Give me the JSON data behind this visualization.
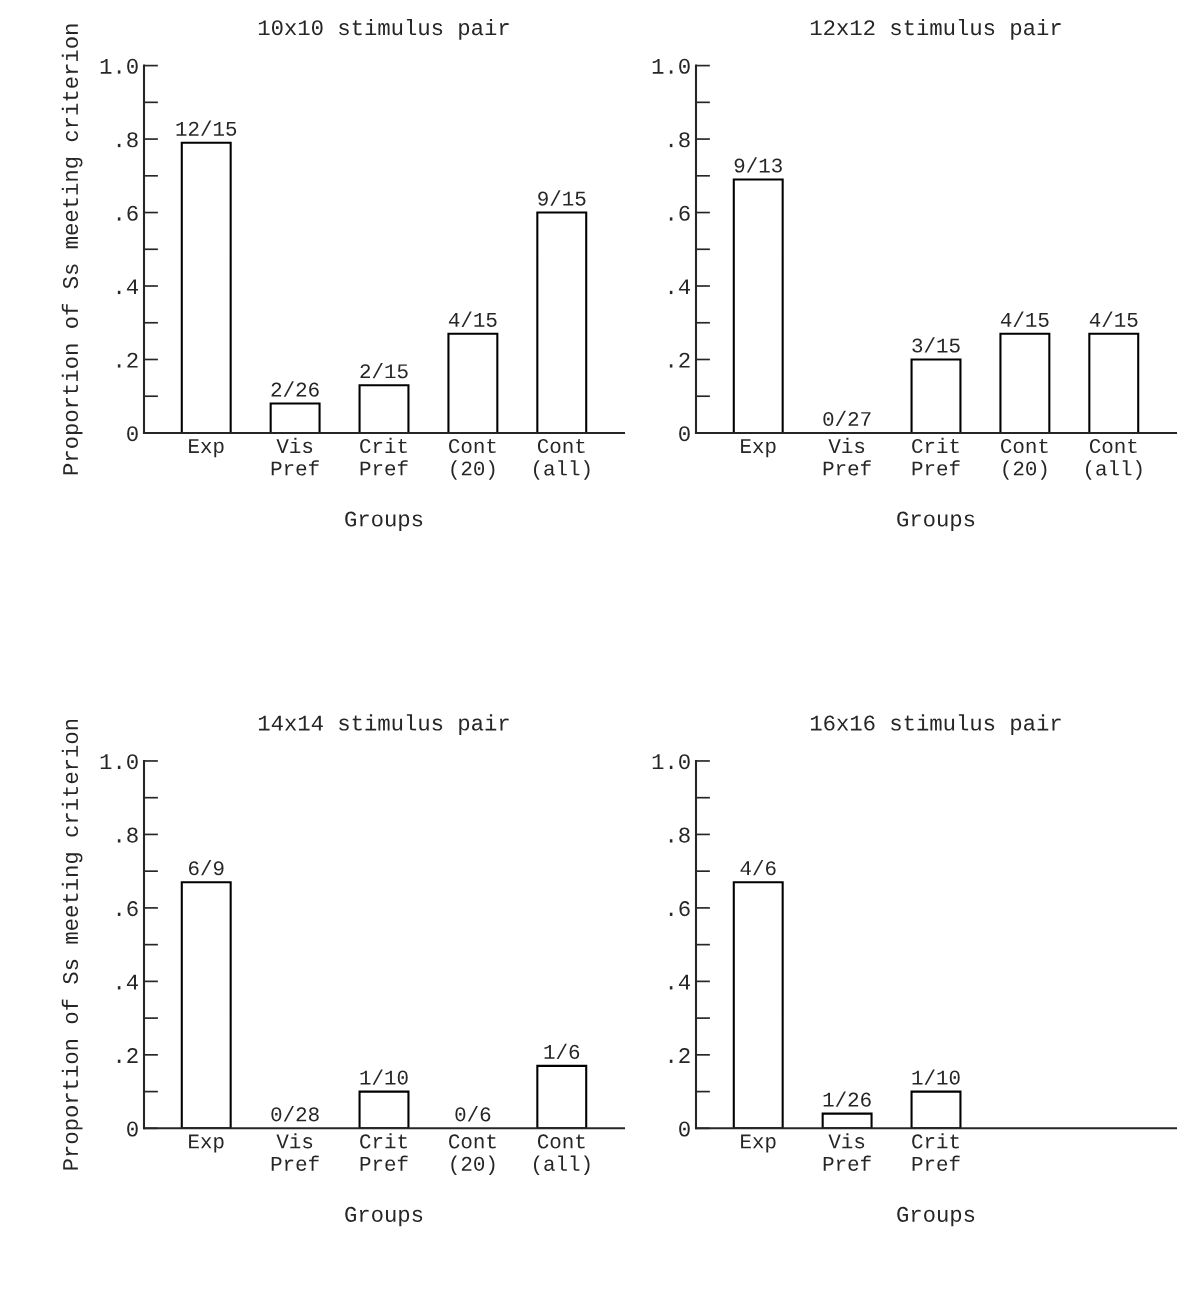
{
  "chart_data": [
    {
      "type": "bar",
      "title": "10x10 stimulus pair",
      "xlabel": "Groups",
      "ylabel": "Proportion of Ss meeting criterion",
      "categories": [
        "Exp",
        "Vis\nPref",
        "Crit\nPref",
        "Cont\n(20)",
        "Cont\n(all)"
      ],
      "values": [
        0.79,
        0.08,
        0.13,
        0.27,
        0.6
      ],
      "value_labels": [
        "12/15",
        "2/26",
        "2/15",
        "4/15",
        "9/15"
      ],
      "color": "#ffffff",
      "ylim": [
        0,
        1.0
      ],
      "yticks": [
        0,
        {
          "value": 0.1,
          "label": null
        },
        {
          "value": 0.2,
          "label": ".2"
        },
        {
          "value": 0.3,
          "label": null
        },
        {
          "value": 0.4,
          "label": ".4"
        },
        {
          "value": 0.5,
          "label": null
        },
        {
          "value": 0.6,
          "label": ".6"
        },
        {
          "value": 0.7,
          "label": null
        },
        {
          "value": 0.8,
          "label": ".8"
        },
        {
          "value": 0.9,
          "label": null
        },
        {
          "value": 1.0,
          "label": "1.0"
        }
      ]
    },
    {
      "type": "bar",
      "title": "12x12 stimulus pair",
      "xlabel": "Groups",
      "categories": [
        "Exp",
        "Vis\nPref",
        "Crit\nPref",
        "Cont\n(20)",
        "Cont\n(all)"
      ],
      "values": [
        0.69,
        0,
        0.2,
        0.27,
        0.27
      ],
      "value_labels": [
        "9/13",
        "0/27",
        "3/15",
        "4/15",
        "4/15"
      ],
      "color": "#ffffff",
      "ylim": [
        0,
        1.0
      ],
      "yticks": [
        0,
        {
          "value": 0.1,
          "label": null
        },
        {
          "value": 0.2,
          "label": ".2"
        },
        {
          "value": 0.3,
          "label": null
        },
        {
          "value": 0.4,
          "label": ".4"
        },
        {
          "value": 0.5,
          "label": null
        },
        {
          "value": 0.6,
          "label": ".6"
        },
        {
          "value": 0.7,
          "label": null
        },
        {
          "value": 0.8,
          "label": ".8"
        },
        {
          "value": 0.9,
          "label": null
        },
        {
          "value": 1.0,
          "label": "1.0"
        }
      ]
    },
    {
      "type": "bar",
      "title": "14x14 stimulus pair",
      "xlabel": "Groups",
      "ylabel": "Proportion of Ss meeting criterion",
      "categories": [
        "Exp",
        "Vis\nPref",
        "Crit\nPref",
        "Cont\n(20)",
        "Cont\n(all)"
      ],
      "values": [
        0.67,
        0,
        0.1,
        0,
        0.17
      ],
      "value_labels": [
        "6/9",
        "0/28",
        "1/10",
        "0/6",
        "1/6"
      ],
      "color": "#ffffff",
      "ylim": [
        0,
        1.0
      ],
      "yticks": [
        0,
        {
          "value": 0.1,
          "label": null
        },
        {
          "value": 0.2,
          "label": ".2"
        },
        {
          "value": 0.3,
          "label": null
        },
        {
          "value": 0.4,
          "label": ".4"
        },
        {
          "value": 0.5,
          "label": null
        },
        {
          "value": 0.6,
          "label": ".6"
        },
        {
          "value": 0.7,
          "label": null
        },
        {
          "value": 0.8,
          "label": ".8"
        },
        {
          "value": 0.9,
          "label": null
        },
        {
          "value": 1.0,
          "label": "1.0"
        }
      ]
    },
    {
      "type": "bar",
      "title": "16x16 stimulus pair",
      "xlabel": "Groups",
      "categories": [
        "Exp",
        "Vis\nPref",
        "Crit\nPref",
        null,
        null
      ],
      "values": [
        0.67,
        0.04,
        0.1,
        null,
        null
      ],
      "value_labels": [
        "4/6",
        "1/26",
        "1/10",
        null,
        null
      ],
      "color": "#ffffff",
      "ylim": [
        0,
        1.0
      ],
      "yticks": [
        0,
        {
          "value": 0.1,
          "label": null
        },
        {
          "value": 0.2,
          "label": ".2"
        },
        {
          "value": 0.3,
          "label": null
        },
        {
          "value": 0.4,
          "label": ".4"
        },
        {
          "value": 0.5,
          "label": null
        },
        {
          "value": 0.6,
          "label": ".6"
        },
        {
          "value": 0.7,
          "label": null
        },
        {
          "value": 0.8,
          "label": ".8"
        },
        {
          "value": 0.9,
          "label": null
        },
        {
          "value": 1.0,
          "label": "1.0"
        }
      ]
    }
  ]
}
